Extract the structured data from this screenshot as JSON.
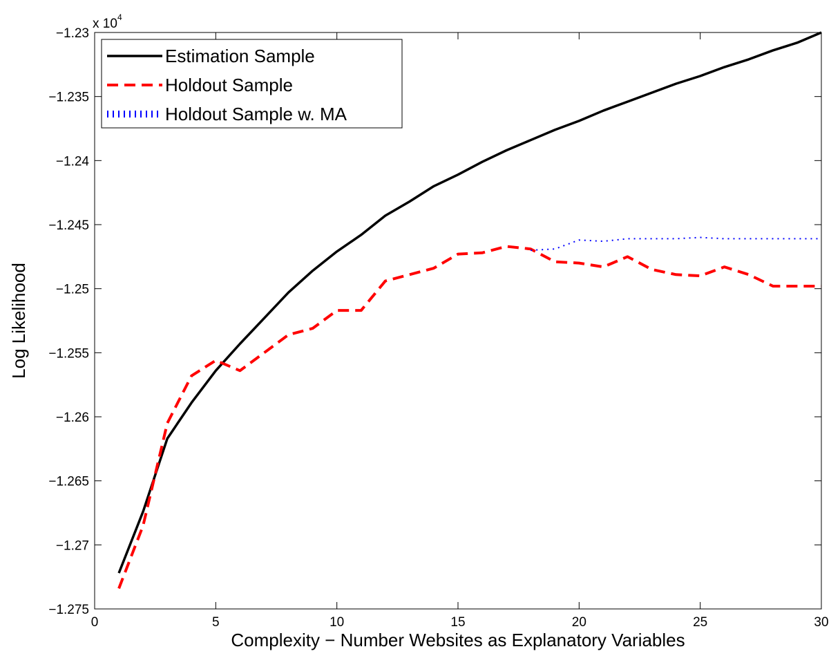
{
  "chart_data": {
    "type": "line",
    "xlabel": "Complexity − Number Websites as Explanatory Variables",
    "ylabel": "Log Likelihood",
    "y_scale_label": "x 10",
    "y_scale_exponent": "4",
    "x": [
      1,
      2,
      3,
      4,
      5,
      6,
      7,
      8,
      9,
      10,
      11,
      12,
      13,
      14,
      15,
      16,
      17,
      18,
      19,
      20,
      21,
      22,
      23,
      24,
      25,
      26,
      27,
      28,
      29,
      30
    ],
    "series": [
      {
        "name": "Estimation Sample",
        "color": "#000000",
        "style": "solid",
        "values": [
          -1.2722,
          -1.2674,
          -1.2617,
          -1.2589,
          -1.2564,
          -1.2543,
          -1.2523,
          -1.2503,
          -1.2486,
          -1.2471,
          -1.2458,
          -1.2443,
          -1.2432,
          -1.242,
          -1.2411,
          -1.2401,
          -1.2392,
          -1.2384,
          -1.2376,
          -1.2369,
          -1.2361,
          -1.2354,
          -1.2347,
          -1.234,
          -1.2334,
          -1.2327,
          -1.2321,
          -1.2314,
          -1.2308,
          -1.23
        ]
      },
      {
        "name": "Holdout Sample",
        "color": "#ff0000",
        "style": "dashed",
        "values": [
          -1.2734,
          -1.2685,
          -1.2605,
          -1.2568,
          -1.2556,
          -1.2564,
          -1.255,
          -1.2536,
          -1.2531,
          -1.2517,
          -1.2517,
          -1.2494,
          -1.2489,
          -1.2484,
          -1.2473,
          -1.2472,
          -1.2467,
          -1.2469,
          -1.2479,
          -1.248,
          -1.2483,
          -1.2475,
          -1.2485,
          -1.2489,
          -1.249,
          -1.2483,
          -1.2489,
          -1.2498,
          -1.2498,
          -1.2498
        ]
      },
      {
        "name": "Holdout Sample w. MA",
        "color": "#0000ff",
        "style": "dotted",
        "values": [
          null,
          null,
          null,
          null,
          null,
          null,
          null,
          null,
          null,
          null,
          null,
          null,
          null,
          null,
          null,
          null,
          null,
          -1.247,
          -1.2469,
          -1.2462,
          -1.2463,
          -1.2461,
          -1.2461,
          -1.2461,
          -1.246,
          -1.2461,
          -1.2461,
          -1.2461,
          -1.2461,
          -1.2461
        ]
      }
    ],
    "xlim": [
      0,
      30
    ],
    "xticks": [
      0,
      5,
      10,
      15,
      20,
      25,
      30
    ],
    "ylim": [
      -1.275,
      -1.23
    ],
    "yticks": [
      {
        "value": -1.275,
        "label": "−1.275"
      },
      {
        "value": -1.27,
        "label": "−1.27"
      },
      {
        "value": -1.265,
        "label": "−1.265"
      },
      {
        "value": -1.26,
        "label": "−1.26"
      },
      {
        "value": -1.255,
        "label": "−1.255"
      },
      {
        "value": -1.25,
        "label": "−1.25"
      },
      {
        "value": -1.245,
        "label": "−1.245"
      },
      {
        "value": -1.24,
        "label": "−1.24"
      },
      {
        "value": -1.235,
        "label": "−1.235"
      },
      {
        "value": -1.23,
        "label": "−1.23"
      }
    ],
    "grid": false,
    "legend": "upper left"
  }
}
